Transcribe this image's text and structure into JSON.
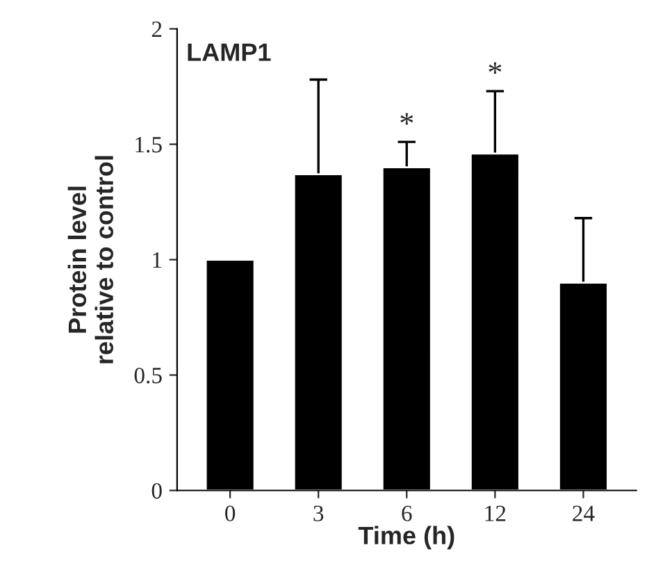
{
  "chart_data": {
    "type": "bar",
    "title": "LAMP1",
    "xlabel": "Time (h)",
    "ylabel": "Protein level\nrelative to control",
    "categories": [
      "0",
      "3",
      "6",
      "12",
      "24"
    ],
    "values": [
      1.0,
      1.37,
      1.4,
      1.46,
      0.9
    ],
    "errors": [
      null,
      [
        1.37,
        1.78
      ],
      [
        1.4,
        1.51
      ],
      [
        1.46,
        1.73
      ],
      [
        0.9,
        1.18
      ]
    ],
    "color": "#000000",
    "ylim": [
      0,
      2
    ],
    "yticks": [
      0,
      0.5,
      1,
      1.5,
      2
    ],
    "grid": false,
    "legend": false,
    "annotations": [
      {
        "text": "*",
        "x": "6",
        "y": 1.51
      },
      {
        "text": "*",
        "x": "12",
        "y": 1.73
      }
    ]
  }
}
